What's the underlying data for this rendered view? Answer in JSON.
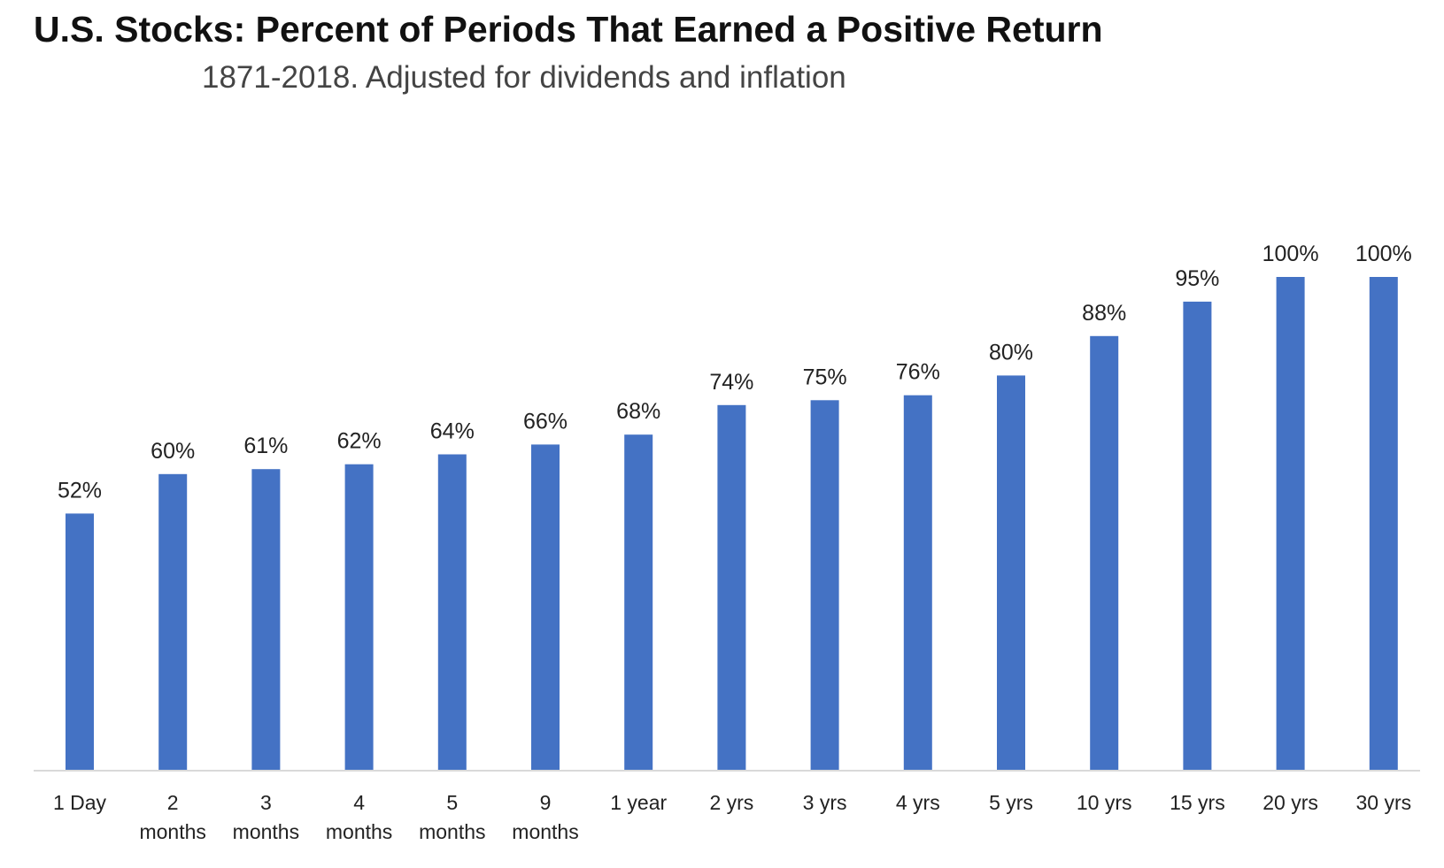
{
  "chart_data": {
    "type": "bar",
    "title": "U.S. Stocks: Percent of Periods That Earned a Positive Return",
    "subtitle": "1871-2018. Adjusted for dividends and inflation",
    "categories": [
      [
        "1 Day"
      ],
      [
        "2",
        "months"
      ],
      [
        "3",
        "months"
      ],
      [
        "4",
        "months"
      ],
      [
        "5",
        "months"
      ],
      [
        "9",
        "months"
      ],
      [
        "1 year"
      ],
      [
        "2 yrs"
      ],
      [
        "3 yrs"
      ],
      [
        "4 yrs"
      ],
      [
        "5 yrs"
      ],
      [
        "10 yrs"
      ],
      [
        "15 yrs"
      ],
      [
        "20 yrs"
      ],
      [
        "30 yrs"
      ]
    ],
    "values": [
      52,
      60,
      61,
      62,
      64,
      66,
      68,
      74,
      75,
      76,
      80,
      88,
      95,
      100,
      100
    ],
    "data_labels": [
      "52%",
      "60%",
      "61%",
      "62%",
      "64%",
      "66%",
      "68%",
      "74%",
      "75%",
      "76%",
      "80%",
      "88%",
      "95%",
      "100%",
      "100%"
    ],
    "ylim": [
      0,
      100
    ],
    "grid": false,
    "legend": "none",
    "bar_color": "#4472C4",
    "axis_color": "#D9D9D9"
  }
}
